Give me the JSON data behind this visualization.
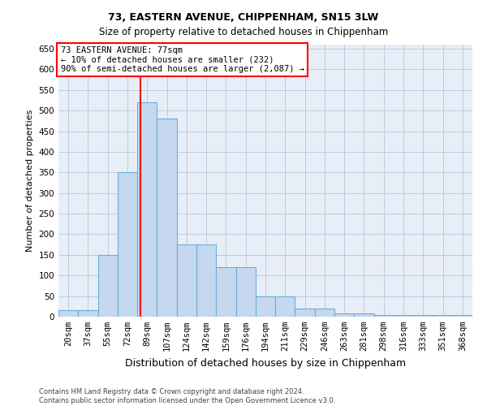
{
  "title1": "73, EASTERN AVENUE, CHIPPENHAM, SN15 3LW",
  "title2": "Size of property relative to detached houses in Chippenham",
  "xlabel": "Distribution of detached houses by size in Chippenham",
  "ylabel": "Number of detached properties",
  "categories": [
    "20sqm",
    "37sqm",
    "55sqm",
    "72sqm",
    "89sqm",
    "107sqm",
    "124sqm",
    "142sqm",
    "159sqm",
    "176sqm",
    "194sqm",
    "211sqm",
    "229sqm",
    "246sqm",
    "263sqm",
    "281sqm",
    "298sqm",
    "316sqm",
    "333sqm",
    "351sqm",
    "368sqm"
  ],
  "values": [
    15,
    15,
    150,
    350,
    520,
    480,
    175,
    175,
    120,
    120,
    50,
    50,
    20,
    20,
    8,
    8,
    3,
    3,
    3,
    3,
    3
  ],
  "bar_color": "#c5d8f0",
  "bar_edge_color": "#6baed6",
  "property_line_x": 3.65,
  "annotation_text1": "73 EASTERN AVENUE: 77sqm",
  "annotation_text2": "← 10% of detached houses are smaller (232)",
  "annotation_text3": "90% of semi-detached houses are larger (2,087) →",
  "annotation_box_color": "white",
  "annotation_border_color": "red",
  "vline_color": "red",
  "ylim": [
    0,
    660
  ],
  "yticks": [
    0,
    50,
    100,
    150,
    200,
    250,
    300,
    350,
    400,
    450,
    500,
    550,
    600,
    650
  ],
  "footer1": "Contains HM Land Registry data © Crown copyright and database right 2024.",
  "footer2": "Contains public sector information licensed under the Open Government Licence v3.0.",
  "background_color": "#e8eef8",
  "plot_background": "white",
  "title_fontsize": 9,
  "subtitle_fontsize": 8.5,
  "ylabel_fontsize": 8,
  "xlabel_fontsize": 9,
  "tick_fontsize": 7.5,
  "footer_fontsize": 6,
  "annot_fontsize": 7.5
}
